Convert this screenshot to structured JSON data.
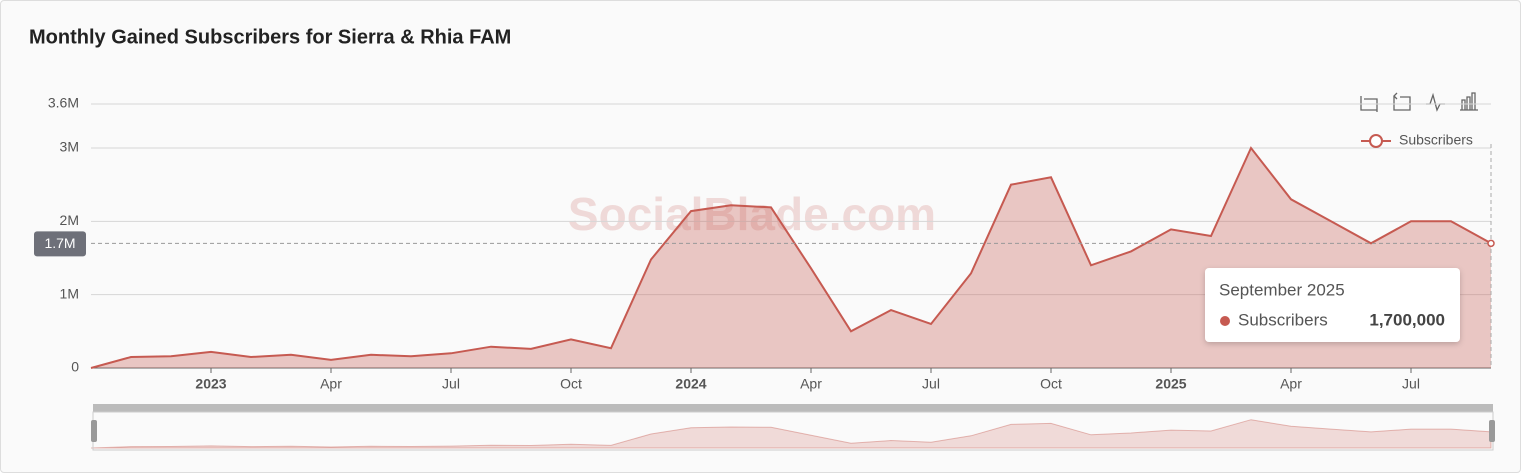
{
  "chart_data": {
    "type": "area",
    "title": "Monthly Gained Subscribers for Sierra & Rhia FAM",
    "watermark": "SocialBlade.com",
    "x": [
      "2022-10",
      "2022-11",
      "2022-12",
      "2023-01",
      "2023-02",
      "2023-03",
      "2023-04",
      "2023-05",
      "2023-06",
      "2023-07",
      "2023-08",
      "2023-09",
      "2023-10",
      "2023-11",
      "2023-12",
      "2024-01",
      "2024-02",
      "2024-03",
      "2024-04",
      "2024-05",
      "2024-06",
      "2024-07",
      "2024-08",
      "2024-09",
      "2024-10",
      "2024-11",
      "2024-12",
      "2025-01",
      "2025-02",
      "2025-03",
      "2025-04",
      "2025-05",
      "2025-06",
      "2025-07",
      "2025-08",
      "2025-09"
    ],
    "series": [
      {
        "name": "Subscribers",
        "color": "#c65a51",
        "values": [
          0,
          150000,
          160000,
          220000,
          150000,
          180000,
          110000,
          180000,
          160000,
          200000,
          290000,
          260000,
          390000,
          270000,
          1480000,
          2140000,
          2220000,
          2190000,
          1360000,
          500000,
          790000,
          600000,
          1290000,
          2500000,
          2600000,
          1400000,
          1590000,
          1890000,
          1800000,
          3000000,
          2300000,
          2000000,
          1700000,
          2000000,
          2000000,
          1700000
        ]
      }
    ],
    "xlim": [
      "2022-10",
      "2025-09"
    ],
    "xticks": [
      {
        "value": "2023-01",
        "label": "2023"
      },
      {
        "value": "2023-04",
        "label": "Apr"
      },
      {
        "value": "2023-07",
        "label": "Jul"
      },
      {
        "value": "2023-10",
        "label": "Oct"
      },
      {
        "value": "2024-01",
        "label": "2024"
      },
      {
        "value": "2024-04",
        "label": "Apr"
      },
      {
        "value": "2024-07",
        "label": "Jul"
      },
      {
        "value": "2024-10",
        "label": "Oct"
      },
      {
        "value": "2025-01",
        "label": "2025"
      },
      {
        "value": "2025-04",
        "label": "Apr"
      },
      {
        "value": "2025-07",
        "label": "Jul"
      }
    ],
    "ylim": [
      0,
      3600000
    ],
    "yticks": [
      0,
      {
        "value": 1000000,
        "label": "1M"
      },
      {
        "value": 2000000,
        "label": "2M"
      },
      {
        "value": 3000000,
        "label": "3M"
      },
      {
        "value": 3600000,
        "label": "3.6M"
      }
    ],
    "grid": true,
    "legend": "top-right",
    "pointer": {
      "value": 1700000,
      "label": "1.7M"
    },
    "tooltip": {
      "title": "September 2025",
      "series": "Subscribers",
      "value": 1700000,
      "label": "1,700,000"
    }
  }
}
